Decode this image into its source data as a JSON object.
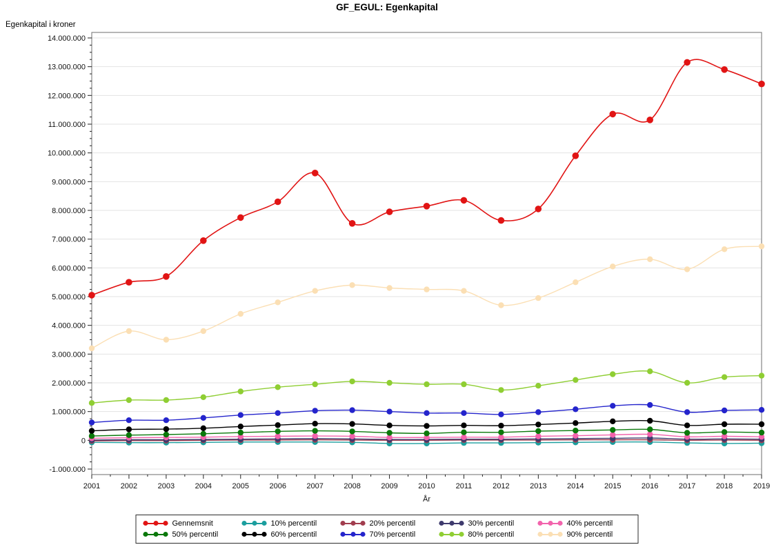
{
  "chart_data": {
    "type": "line",
    "title": "GF_EGUL: Egenkapital",
    "xlabel": "År",
    "ylabel": "Egenkapital i kroner",
    "x": [
      2001,
      2002,
      2003,
      2004,
      2005,
      2006,
      2007,
      2008,
      2009,
      2010,
      2011,
      2012,
      2013,
      2014,
      2015,
      2016,
      2017,
      2018,
      2019
    ],
    "xtick_labels": [
      "2001",
      "2002",
      "2003",
      "2004",
      "2005",
      "2006",
      "2007",
      "2008",
      "2009",
      "2010",
      "2011",
      "2012",
      "2013",
      "2014",
      "2015",
      "2016",
      "2017",
      "2018",
      "2019"
    ],
    "ylim": [
      -1000000,
      14000000
    ],
    "ytick_step": 1000000,
    "ytick_labels": [
      "14.000.000",
      "13.000.000",
      "12.000.000",
      "11.000.000",
      "10.000.000",
      "9.000.000",
      "8.000.000",
      "7.000.000",
      "6.000.000",
      "5.000.000",
      "4.000.000",
      "3.000.000",
      "2.000.000",
      "1.000.000",
      "0",
      "-1.000.000"
    ],
    "grid": true,
    "legend_position": "bottom",
    "series": [
      {
        "name": "Gennemsnit",
        "color": "#e11414",
        "marker_r": 4.8,
        "values": [
          5050000,
          5500000,
          5700000,
          6950000,
          7750000,
          8300000,
          9300000,
          7550000,
          7950000,
          8150000,
          8350000,
          7650000,
          8050000,
          9900000,
          11350000,
          11150000,
          13150000,
          12900000,
          12400000
        ]
      },
      {
        "name": "10% percentil",
        "color": "#1b9e9e",
        "marker_r": 4.2,
        "values": [
          -70000,
          -80000,
          -80000,
          -70000,
          -60000,
          -60000,
          -60000,
          -70000,
          -110000,
          -110000,
          -90000,
          -90000,
          -80000,
          -70000,
          -60000,
          -60000,
          -90000,
          -110000,
          -100000
        ]
      },
      {
        "name": "20% percentil",
        "color": "#a13d4e",
        "marker_r": 4.2,
        "values": [
          -20000,
          -10000,
          -10000,
          0,
          10000,
          10000,
          20000,
          10000,
          0,
          0,
          10000,
          10000,
          10000,
          20000,
          20000,
          20000,
          0,
          10000,
          0
        ]
      },
      {
        "name": "30% percentil",
        "color": "#3e3a6d",
        "marker_r": 4.2,
        "values": [
          10000,
          20000,
          20000,
          30000,
          40000,
          50000,
          60000,
          50000,
          30000,
          30000,
          40000,
          40000,
          50000,
          60000,
          70000,
          80000,
          40000,
          50000,
          40000
        ]
      },
      {
        "name": "40% percentil",
        "color": "#f263ac",
        "marker_r": 4.2,
        "values": [
          70000,
          90000,
          100000,
          110000,
          130000,
          140000,
          150000,
          140000,
          100000,
          100000,
          110000,
          110000,
          140000,
          160000,
          190000,
          210000,
          120000,
          140000,
          120000
        ]
      },
      {
        "name": "50% percentil",
        "color": "#0a780a",
        "marker_r": 4.2,
        "values": [
          150000,
          180000,
          200000,
          230000,
          270000,
          310000,
          330000,
          310000,
          260000,
          240000,
          280000,
          280000,
          320000,
          340000,
          360000,
          380000,
          260000,
          290000,
          270000
        ]
      },
      {
        "name": "60% percentil",
        "color": "#000000",
        "marker_r": 4.2,
        "values": [
          330000,
          380000,
          390000,
          420000,
          480000,
          530000,
          580000,
          570000,
          520000,
          500000,
          520000,
          510000,
          550000,
          600000,
          660000,
          680000,
          520000,
          560000,
          560000
        ]
      },
      {
        "name": "70% percentil",
        "color": "#2424cc",
        "marker_r": 4.2,
        "values": [
          620000,
          700000,
          700000,
          780000,
          880000,
          950000,
          1030000,
          1050000,
          1000000,
          950000,
          950000,
          900000,
          980000,
          1080000,
          1200000,
          1230000,
          980000,
          1040000,
          1060000
        ]
      },
      {
        "name": "80% percentil",
        "color": "#8fce33",
        "marker_r": 4.2,
        "values": [
          1300000,
          1400000,
          1400000,
          1500000,
          1700000,
          1850000,
          1950000,
          2050000,
          2000000,
          1950000,
          1950000,
          1750000,
          1900000,
          2100000,
          2300000,
          2400000,
          2000000,
          2200000,
          2250000
        ]
      },
      {
        "name": "90% percentil",
        "color": "#fbdfb4",
        "marker_r": 4.2,
        "values": [
          3200000,
          3800000,
          3500000,
          3800000,
          4400000,
          4800000,
          5200000,
          5400000,
          5300000,
          5250000,
          5200000,
          4700000,
          4950000,
          5500000,
          6050000,
          6300000,
          5950000,
          6650000,
          6750000
        ]
      }
    ]
  }
}
